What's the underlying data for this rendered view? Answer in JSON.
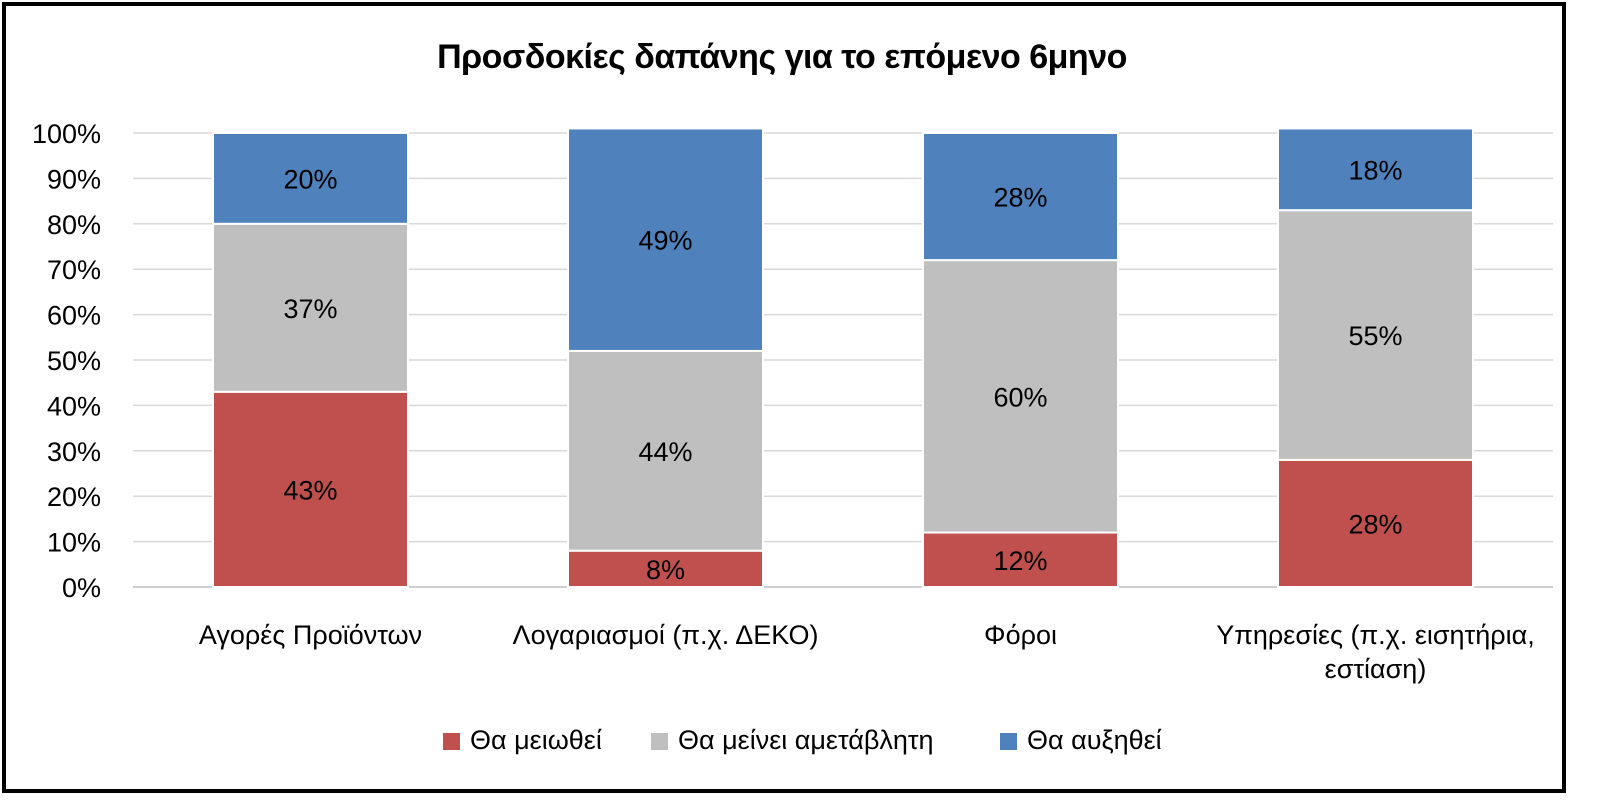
{
  "chart_data": {
    "type": "bar",
    "stacked": true,
    "title": "Προσδοκίες δαπάνης για το επόμενο 6μηνο",
    "xlabel": "",
    "ylabel": "",
    "ylim": [
      0,
      100
    ],
    "grid": true,
    "legend_position": "bottom",
    "y_ticks": [
      "0%",
      "10%",
      "20%",
      "30%",
      "40%",
      "50%",
      "60%",
      "70%",
      "80%",
      "90%",
      "100%"
    ],
    "categories": [
      [
        "Αγορές Προϊόντων"
      ],
      [
        "Λογαριασμοί (π.χ. ΔΕΚΟ)"
      ],
      [
        "Φόροι"
      ],
      [
        "Υπηρεσίες (π.χ. εισητήρια,",
        "εστίαση)"
      ]
    ],
    "series": [
      {
        "name": "Θα μειωθεί",
        "color": "#C0504D",
        "values": [
          43,
          8,
          12,
          28
        ],
        "labels": [
          "43%",
          "8%",
          "12%",
          "28%"
        ]
      },
      {
        "name": "Θα μείνει αμετάβλητη",
        "color": "#BFBFBF",
        "values": [
          37,
          44,
          60,
          55
        ],
        "labels": [
          "37%",
          "44%",
          "60%",
          "55%"
        ]
      },
      {
        "name": "Θα αυξηθεί",
        "color": "#4F81BD",
        "values": [
          20,
          49,
          28,
          18
        ],
        "labels": [
          "20%",
          "49%",
          "28%",
          "18%"
        ]
      }
    ]
  }
}
